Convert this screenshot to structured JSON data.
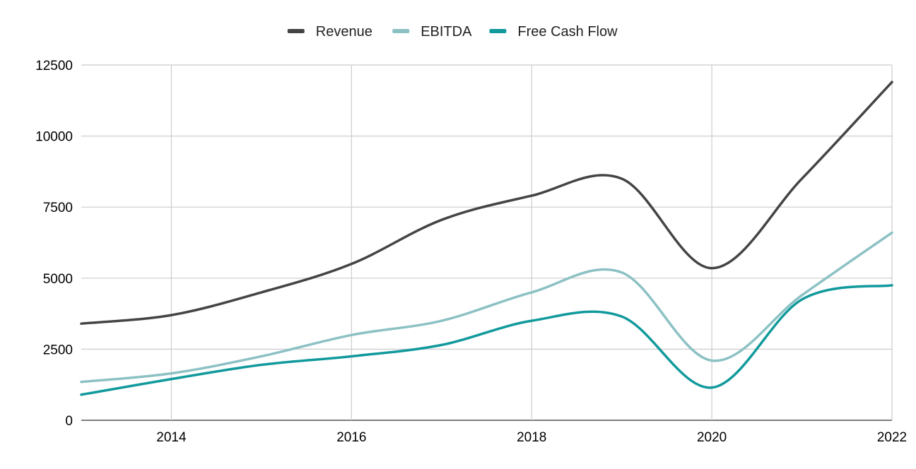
{
  "chart_data": {
    "type": "line",
    "title": "",
    "xlabel": "",
    "ylabel": "",
    "x": [
      2013,
      2014,
      2015,
      2016,
      2017,
      2018,
      2019,
      2020,
      2021,
      2022
    ],
    "xlim": [
      2013,
      2022
    ],
    "ylim": [
      0,
      12500
    ],
    "x_ticks": [
      "2014",
      "2016",
      "2018",
      "2020",
      "2022"
    ],
    "y_ticks": [
      "0",
      "2500",
      "5000",
      "7500",
      "10000",
      "12500"
    ],
    "grid": true,
    "legend_position": "top-center",
    "series": [
      {
        "name": "Revenue",
        "color": "#444444",
        "values": [
          3400,
          3700,
          4500,
          5500,
          7050,
          7900,
          8500,
          5350,
          8500,
          11900
        ]
      },
      {
        "name": "EBITDA",
        "color": "#8cc1c4",
        "values": [
          1350,
          1650,
          2250,
          3000,
          3500,
          4500,
          5200,
          2100,
          4400,
          6600
        ]
      },
      {
        "name": "Free Cash Flow",
        "color": "#11999c",
        "values": [
          900,
          1450,
          1950,
          2250,
          2650,
          3500,
          3650,
          1150,
          4250,
          4750
        ]
      }
    ]
  }
}
